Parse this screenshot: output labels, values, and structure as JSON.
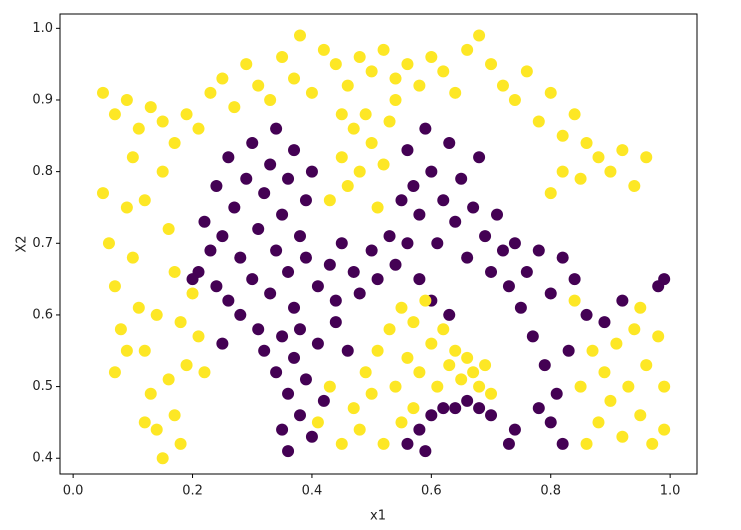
{
  "chart_data": {
    "type": "scatter",
    "x_label": "x1",
    "y_label": "X2",
    "xlim": [
      -0.022,
      1.045
    ],
    "ylim": [
      0.378,
      1.02
    ],
    "xticks": [
      {
        "value": 0,
        "label": "0.0"
      },
      0.2,
      0.4,
      0.6,
      0.8,
      {
        "value": 1,
        "label": "1.0"
      }
    ],
    "yticks": [
      0.4,
      0.5,
      0.6,
      0.7,
      0.8,
      0.9,
      {
        "value": 1,
        "label": "1.0"
      }
    ],
    "series": [
      {
        "color": "#440154",
        "x": [
          0.22,
          0.23,
          0.24,
          0.25,
          0.26,
          0.27,
          0.28,
          0.29,
          0.3,
          0.31,
          0.32,
          0.33,
          0.34,
          0.35,
          0.36,
          0.37,
          0.38,
          0.39,
          0.4,
          0.21,
          0.24,
          0.26,
          0.28,
          0.3,
          0.31,
          0.33,
          0.34,
          0.36,
          0.37,
          0.39,
          0.41,
          0.43,
          0.44,
          0.45,
          0.47,
          0.48,
          0.5,
          0.51,
          0.53,
          0.54,
          0.32,
          0.34,
          0.35,
          0.36,
          0.37,
          0.38,
          0.39,
          0.4,
          0.41,
          0.35,
          0.36,
          0.38,
          0.42,
          0.44,
          0.46,
          0.56,
          0.57,
          0.58,
          0.59,
          0.6,
          0.61,
          0.62,
          0.63,
          0.64,
          0.65,
          0.66,
          0.67,
          0.68,
          0.69,
          0.7,
          0.71,
          0.72,
          0.73,
          0.74,
          0.75,
          0.55,
          0.56,
          0.58,
          0.6,
          0.63,
          0.76,
          0.78,
          0.8,
          0.82,
          0.84,
          0.86,
          0.77,
          0.79,
          0.81,
          0.83,
          0.8,
          0.82,
          0.78,
          0.74,
          0.73,
          0.56,
          0.58,
          0.6,
          0.62,
          0.64,
          0.66,
          0.68,
          0.7,
          0.59,
          0.98,
          0.99,
          0.92,
          0.89,
          0.25,
          0.2
        ],
        "values": [
          0.73,
          0.69,
          0.78,
          0.71,
          0.82,
          0.75,
          0.68,
          0.79,
          0.84,
          0.72,
          0.77,
          0.81,
          0.86,
          0.74,
          0.79,
          0.83,
          0.71,
          0.76,
          0.8,
          0.66,
          0.64,
          0.62,
          0.6,
          0.65,
          0.58,
          0.63,
          0.69,
          0.66,
          0.61,
          0.68,
          0.64,
          0.67,
          0.62,
          0.7,
          0.66,
          0.63,
          0.69,
          0.65,
          0.71,
          0.67,
          0.55,
          0.52,
          0.57,
          0.49,
          0.54,
          0.46,
          0.51,
          0.43,
          0.56,
          0.44,
          0.41,
          0.58,
          0.48,
          0.59,
          0.55,
          0.83,
          0.78,
          0.74,
          0.86,
          0.8,
          0.7,
          0.76,
          0.84,
          0.73,
          0.79,
          0.68,
          0.75,
          0.82,
          0.71,
          0.66,
          0.74,
          0.69,
          0.64,
          0.7,
          0.61,
          0.76,
          0.7,
          0.65,
          0.62,
          0.6,
          0.66,
          0.69,
          0.63,
          0.68,
          0.65,
          0.6,
          0.57,
          0.53,
          0.49,
          0.55,
          0.45,
          0.42,
          0.47,
          0.44,
          0.42,
          0.42,
          0.44,
          0.46,
          0.47,
          0.47,
          0.48,
          0.47,
          0.46,
          0.41,
          0.64,
          0.65,
          0.62,
          0.59,
          0.56,
          0.65
        ]
      },
      {
        "color": "#fde725",
        "x": [
          0.05,
          0.07,
          0.09,
          0.11,
          0.13,
          0.15,
          0.17,
          0.19,
          0.21,
          0.23,
          0.25,
          0.27,
          0.29,
          0.31,
          0.33,
          0.35,
          0.37,
          0.38,
          0.4,
          0.42,
          0.44,
          0.46,
          0.48,
          0.5,
          0.52,
          0.54,
          0.56,
          0.58,
          0.6,
          0.62,
          0.64,
          0.66,
          0.68,
          0.7,
          0.72,
          0.74,
          0.76,
          0.78,
          0.8,
          0.82,
          0.84,
          0.86,
          0.88,
          0.9,
          0.92,
          0.94,
          0.82,
          0.85,
          0.8,
          0.96,
          0.05,
          0.06,
          0.07,
          0.08,
          0.07,
          0.09,
          0.1,
          0.11,
          0.12,
          0.13,
          0.14,
          0.15,
          0.16,
          0.17,
          0.18,
          0.19,
          0.14,
          0.16,
          0.17,
          0.18,
          0.15,
          0.2,
          0.21,
          0.22,
          0.12,
          0.1,
          0.12,
          0.09,
          0.43,
          0.45,
          0.46,
          0.47,
          0.48,
          0.49,
          0.5,
          0.52,
          0.53,
          0.54,
          0.45,
          0.51,
          0.45,
          0.47,
          0.48,
          0.49,
          0.5,
          0.51,
          0.52,
          0.53,
          0.54,
          0.55,
          0.56,
          0.57,
          0.58,
          0.59,
          0.6,
          0.61,
          0.62,
          0.63,
          0.64,
          0.65,
          0.66,
          0.67,
          0.68,
          0.69,
          0.7,
          0.55,
          0.57,
          0.43,
          0.41,
          0.88,
          0.89,
          0.9,
          0.91,
          0.92,
          0.93,
          0.94,
          0.95,
          0.96,
          0.97,
          0.98,
          0.99,
          0.87,
          0.85,
          0.86,
          0.95,
          0.99,
          0.84
        ],
        "values": [
          0.91,
          0.88,
          0.9,
          0.86,
          0.89,
          0.87,
          0.84,
          0.88,
          0.86,
          0.91,
          0.93,
          0.89,
          0.95,
          0.92,
          0.9,
          0.96,
          0.93,
          0.99,
          0.91,
          0.97,
          0.95,
          0.92,
          0.96,
          0.94,
          0.97,
          0.93,
          0.95,
          0.92,
          0.96,
          0.94,
          0.91,
          0.97,
          0.99,
          0.95,
          0.92,
          0.9,
          0.94,
          0.87,
          0.91,
          0.85,
          0.88,
          0.84,
          0.82,
          0.8,
          0.83,
          0.78,
          0.8,
          0.79,
          0.77,
          0.82,
          0.77,
          0.7,
          0.64,
          0.58,
          0.52,
          0.75,
          0.68,
          0.61,
          0.55,
          0.49,
          0.44,
          0.8,
          0.72,
          0.66,
          0.59,
          0.53,
          0.6,
          0.51,
          0.46,
          0.42,
          0.4,
          0.63,
          0.57,
          0.52,
          0.45,
          0.82,
          0.76,
          0.55,
          0.76,
          0.82,
          0.78,
          0.86,
          0.8,
          0.88,
          0.84,
          0.81,
          0.87,
          0.9,
          0.88,
          0.75,
          0.42,
          0.47,
          0.44,
          0.52,
          0.49,
          0.55,
          0.42,
          0.58,
          0.5,
          0.61,
          0.54,
          0.59,
          0.52,
          0.62,
          0.56,
          0.5,
          0.58,
          0.53,
          0.55,
          0.51,
          0.54,
          0.52,
          0.5,
          0.53,
          0.49,
          0.45,
          0.47,
          0.5,
          0.45,
          0.45,
          0.52,
          0.48,
          0.56,
          0.43,
          0.5,
          0.58,
          0.46,
          0.53,
          0.42,
          0.57,
          0.44,
          0.55,
          0.5,
          0.42,
          0.61,
          0.5,
          0.62
        ]
      }
    ]
  }
}
